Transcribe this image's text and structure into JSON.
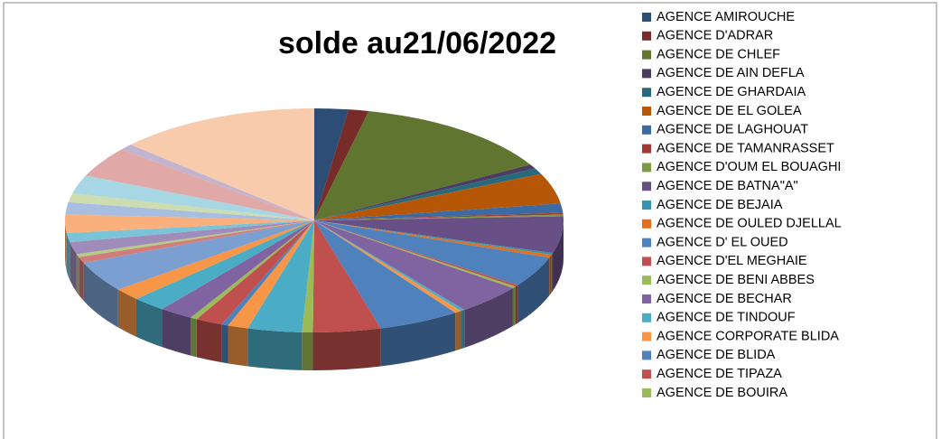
{
  "chart_data": {
    "type": "pie3d",
    "title": "solde au21/06/2022",
    "categories": [
      "AGENCE AMIROUCHE",
      "AGENCE D'ADRAR",
      "AGENCE DE CHLEF",
      "AGENCE DE AIN DEFLA",
      "AGENCE DE GHARDAIA",
      "AGENCE DE EL GOLEA",
      "AGENCE DE LAGHOUAT",
      "AGENCE DE TAMANRASSET",
      "AGENCE D'OUM EL BOUAGHI",
      "AGENCE DE BATNA\"A\"",
      "AGENCE DE BEJAIA",
      "AGENCE DE OULED DJELLAL",
      "AGENCE D' EL OUED",
      "AGENCE D'EL MEGHAIE",
      "AGENCE DE BENI ABBES",
      "AGENCE DE BECHAR",
      "AGENCE DE TINDOUF",
      "AGENCE CORPORATE BLIDA",
      "AGENCE DE BLIDA",
      "AGENCE DE TIPAZA",
      "AGENCE DE BOUIRA",
      null,
      null,
      null,
      null,
      null,
      null,
      null,
      null,
      null,
      null,
      null,
      null,
      null,
      null,
      null,
      null,
      null,
      null,
      null,
      null
    ],
    "values": [
      2.5,
      1.5,
      15,
      0.7,
      1,
      5,
      1.5,
      0.3,
      0.3,
      6,
      0.3,
      0.5,
      5,
      0.3,
      0.3,
      5,
      0.3,
      0.5,
      6,
      5,
      0.8,
      4,
      1.5,
      0.5,
      2,
      0.5,
      2.5,
      2.5,
      2,
      5,
      1,
      0.5,
      2,
      1.5,
      3,
      2,
      1.5,
      3,
      5,
      1,
      15
    ],
    "colors": [
      "#2C4D75",
      "#772C2A",
      "#5F7530",
      "#4D3B62",
      "#276A7C",
      "#B65708",
      "#3C6AA3",
      "#9E3B38",
      "#7E9A44",
      "#684F86",
      "#3595AE",
      "#E07020",
      "#4F81BD",
      "#C0504D",
      "#9BBB59",
      "#8064A2",
      "#4BACC6",
      "#F79646",
      "#4F81BD",
      "#C0504D",
      "#9BBB59",
      "#4BACC6",
      "#F79646",
      "#4F81BD",
      "#C0504D",
      "#9BBB59",
      "#8064A2",
      "#4BACC6",
      "#F79646",
      "#7B9FD0",
      "#D07D7B",
      "#B4CC85",
      "#A08CBA",
      "#7BC3D7",
      "#F9B07C",
      "#A7BEE0",
      "#CDDDB0",
      "#A7D6E4",
      "#E0A9A8",
      "#C0B4D1",
      "#F8CBAD"
    ]
  }
}
